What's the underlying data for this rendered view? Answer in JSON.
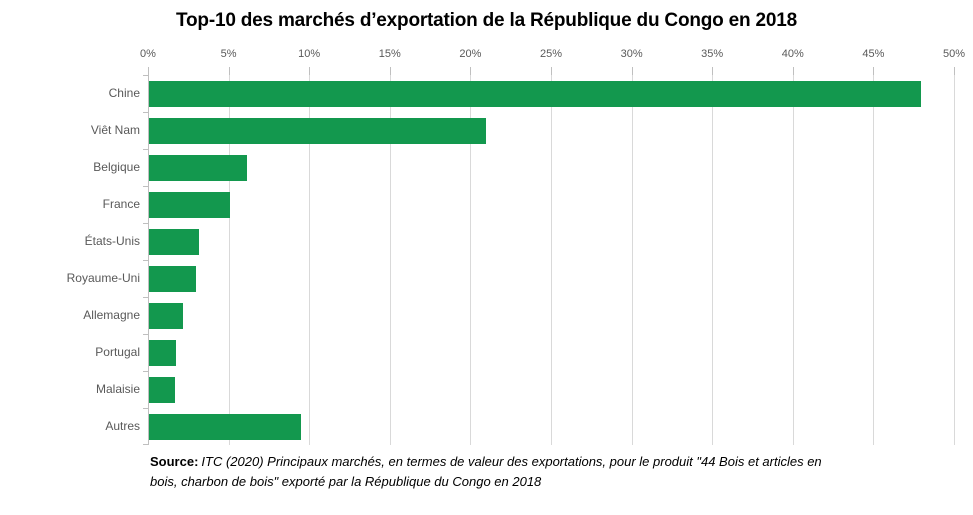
{
  "title": "Top-10 des marchés d’exportation de la République du Congo en 2018",
  "source": {
    "label": "Source:",
    "text": "ITC (2020) Principaux marchés, en termes de valeur des exportations, pour le produit \"44 Bois et articles en bois, charbon de bois\" exporté par la République du Congo en 2018"
  },
  "colors": {
    "bar": "#13984e",
    "gridline": "#d9d9d9",
    "axis_line": "#bfbfbf",
    "tick_text": "#595959",
    "title_text": "#000000"
  },
  "chart_data": {
    "type": "bar",
    "orientation": "horizontal",
    "title": "Top-10 des marchés d’exportation de la République du Congo en 2018",
    "categories": [
      "Chine",
      "Viêt Nam",
      "Belgique",
      "France",
      "États-Unis",
      "Royaume-Uni",
      "Allemagne",
      "Portugal",
      "Malaisie",
      "Autres"
    ],
    "values": [
      47.9,
      20.9,
      6.1,
      5.0,
      3.1,
      2.9,
      2.1,
      1.7,
      1.6,
      9.4
    ],
    "unit": "%",
    "xlabel": "",
    "ylabel": "",
    "xlim": [
      0,
      50
    ],
    "x_tick_step": 5,
    "x_tick_labels": [
      "0%",
      "5%",
      "10%",
      "15%",
      "20%",
      "25%",
      "30%",
      "35%",
      "40%",
      "45%",
      "50%"
    ],
    "grid": true,
    "value_axis_position": "top",
    "legend": "none"
  }
}
